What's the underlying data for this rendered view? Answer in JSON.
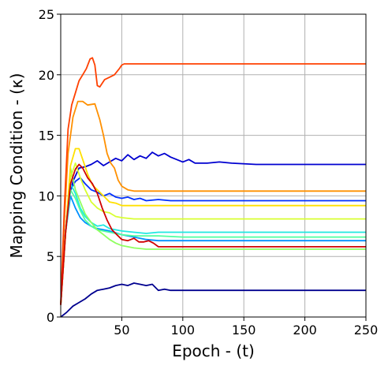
{
  "chart_data": {
    "type": "line",
    "xlabel": "Epoch - (t)",
    "ylabel": "Mapping Condition - (κ)",
    "xlim": [
      0,
      250
    ],
    "ylim": [
      0,
      25
    ],
    "x_ticks": [
      50,
      100,
      150,
      200,
      250
    ],
    "y_ticks": [
      0,
      5,
      10,
      15,
      20,
      25
    ],
    "x_tick_labels": [
      "50",
      "100",
      "150",
      "200",
      "250"
    ],
    "y_tick_labels": [
      "0",
      "5",
      "10",
      "15",
      "20",
      "25"
    ],
    "grid": true,
    "legend": "none",
    "series": [
      {
        "color": "#00008f",
        "points": [
          [
            0,
            0
          ],
          [
            5,
            0.4
          ],
          [
            10,
            0.9
          ],
          [
            15,
            1.2
          ],
          [
            20,
            1.5
          ],
          [
            25,
            1.9
          ],
          [
            30,
            2.2
          ],
          [
            35,
            2.3
          ],
          [
            40,
            2.4
          ],
          [
            45,
            2.6
          ],
          [
            50,
            2.7
          ],
          [
            55,
            2.6
          ],
          [
            60,
            2.8
          ],
          [
            65,
            2.7
          ],
          [
            70,
            2.6
          ],
          [
            75,
            2.7
          ],
          [
            80,
            2.2
          ],
          [
            85,
            2.3
          ],
          [
            90,
            2.2
          ],
          [
            250,
            2.2
          ]
        ]
      },
      {
        "color": "#0000d0",
        "points": [
          [
            0,
            1
          ],
          [
            3,
            6
          ],
          [
            6,
            9.5
          ],
          [
            10,
            11.2
          ],
          [
            15,
            12.3
          ],
          [
            20,
            12.4
          ],
          [
            25,
            12.6
          ],
          [
            30,
            12.9
          ],
          [
            35,
            12.5
          ],
          [
            40,
            12.8
          ],
          [
            45,
            13.1
          ],
          [
            50,
            12.9
          ],
          [
            55,
            13.4
          ],
          [
            60,
            13.0
          ],
          [
            65,
            13.3
          ],
          [
            70,
            13.1
          ],
          [
            75,
            13.6
          ],
          [
            80,
            13.3
          ],
          [
            85,
            13.5
          ],
          [
            90,
            13.2
          ],
          [
            95,
            13.0
          ],
          [
            100,
            12.8
          ],
          [
            105,
            13.0
          ],
          [
            110,
            12.7
          ],
          [
            120,
            12.7
          ],
          [
            130,
            12.8
          ],
          [
            140,
            12.7
          ],
          [
            160,
            12.6
          ],
          [
            250,
            12.6
          ]
        ]
      },
      {
        "color": "#0030ff",
        "points": [
          [
            0,
            1
          ],
          [
            4,
            7
          ],
          [
            8,
            10.5
          ],
          [
            12,
            11.2
          ],
          [
            16,
            11.5
          ],
          [
            20,
            11.0
          ],
          [
            25,
            10.5
          ],
          [
            30,
            10.3
          ],
          [
            35,
            10.0
          ],
          [
            40,
            10.2
          ],
          [
            45,
            9.9
          ],
          [
            50,
            9.8
          ],
          [
            55,
            9.9
          ],
          [
            60,
            9.7
          ],
          [
            65,
            9.8
          ],
          [
            70,
            9.6
          ],
          [
            80,
            9.7
          ],
          [
            90,
            9.6
          ],
          [
            100,
            9.6
          ],
          [
            250,
            9.6
          ]
        ]
      },
      {
        "color": "#0090ff",
        "points": [
          [
            0,
            1
          ],
          [
            4,
            7
          ],
          [
            8,
            10.0
          ],
          [
            12,
            9.0
          ],
          [
            16,
            8.2
          ],
          [
            20,
            7.8
          ],
          [
            25,
            7.5
          ],
          [
            30,
            7.3
          ],
          [
            40,
            7.1
          ],
          [
            50,
            6.8
          ],
          [
            60,
            6.6
          ],
          [
            70,
            6.4
          ],
          [
            80,
            6.3
          ],
          [
            100,
            6.3
          ],
          [
            250,
            6.3
          ]
        ]
      },
      {
        "color": "#20e8e0",
        "points": [
          [
            0,
            1
          ],
          [
            4,
            7
          ],
          [
            8,
            11.0
          ],
          [
            12,
            10.2
          ],
          [
            16,
            9.0
          ],
          [
            20,
            8.3
          ],
          [
            25,
            7.8
          ],
          [
            30,
            7.5
          ],
          [
            35,
            7.6
          ],
          [
            40,
            7.3
          ],
          [
            50,
            7.1
          ],
          [
            60,
            7.0
          ],
          [
            70,
            6.9
          ],
          [
            80,
            7.0
          ],
          [
            250,
            7.0
          ]
        ]
      },
      {
        "color": "#50ffa0",
        "points": [
          [
            0,
            1
          ],
          [
            4,
            7
          ],
          [
            8,
            10.5
          ],
          [
            12,
            9.8
          ],
          [
            16,
            8.8
          ],
          [
            20,
            8.0
          ],
          [
            25,
            7.5
          ],
          [
            30,
            7.2
          ],
          [
            40,
            7.0
          ],
          [
            50,
            6.8
          ],
          [
            60,
            6.7
          ],
          [
            80,
            6.7
          ],
          [
            100,
            6.6
          ],
          [
            250,
            6.6
          ]
        ]
      },
      {
        "color": "#90ff60",
        "points": [
          [
            0,
            1
          ],
          [
            4,
            7
          ],
          [
            8,
            12.3
          ],
          [
            12,
            10.5
          ],
          [
            16,
            9.5
          ],
          [
            20,
            8.5
          ],
          [
            25,
            7.8
          ],
          [
            30,
            7.2
          ],
          [
            35,
            6.8
          ],
          [
            40,
            6.4
          ],
          [
            45,
            6.1
          ],
          [
            50,
            5.9
          ],
          [
            55,
            5.8
          ],
          [
            60,
            5.7
          ],
          [
            70,
            5.6
          ],
          [
            80,
            5.6
          ],
          [
            100,
            5.6
          ],
          [
            250,
            5.6
          ]
        ]
      },
      {
        "color": "#d8ff30",
        "points": [
          [
            0,
            1
          ],
          [
            4,
            7
          ],
          [
            8,
            11.5
          ],
          [
            12,
            12.7
          ],
          [
            16,
            11.5
          ],
          [
            20,
            10.5
          ],
          [
            25,
            9.5
          ],
          [
            30,
            9.0
          ],
          [
            35,
            8.7
          ],
          [
            40,
            8.6
          ],
          [
            45,
            8.3
          ],
          [
            50,
            8.2
          ],
          [
            60,
            8.1
          ],
          [
            70,
            8.1
          ],
          [
            80,
            8.1
          ],
          [
            250,
            8.1
          ]
        ]
      },
      {
        "color": "#ffe000",
        "points": [
          [
            0,
            1
          ],
          [
            4,
            7
          ],
          [
            8,
            12.5
          ],
          [
            12,
            13.9
          ],
          [
            15,
            13.9
          ],
          [
            18,
            13.0
          ],
          [
            22,
            11.8
          ],
          [
            26,
            10.9
          ],
          [
            30,
            10.5
          ],
          [
            35,
            10.0
          ],
          [
            40,
            9.5
          ],
          [
            45,
            9.4
          ],
          [
            50,
            9.2
          ],
          [
            60,
            9.2
          ],
          [
            80,
            9.2
          ],
          [
            250,
            9.2
          ]
        ]
      },
      {
        "color": "#ff9000",
        "points": [
          [
            0,
            1
          ],
          [
            3,
            8
          ],
          [
            6,
            13.5
          ],
          [
            10,
            16.5
          ],
          [
            14,
            17.8
          ],
          [
            18,
            17.8
          ],
          [
            22,
            17.5
          ],
          [
            28,
            17.6
          ],
          [
            32,
            16.3
          ],
          [
            35,
            15.0
          ],
          [
            38,
            13.5
          ],
          [
            41,
            12.7
          ],
          [
            44,
            12.3
          ],
          [
            47,
            11.3
          ],
          [
            50,
            10.8
          ],
          [
            55,
            10.5
          ],
          [
            60,
            10.4
          ],
          [
            70,
            10.4
          ],
          [
            80,
            10.4
          ],
          [
            250,
            10.4
          ]
        ]
      },
      {
        "color": "#ff4000",
        "points": [
          [
            0,
            1
          ],
          [
            3,
            9
          ],
          [
            6,
            15.5
          ],
          [
            9,
            17.5
          ],
          [
            12,
            18.5
          ],
          [
            15,
            19.5
          ],
          [
            18,
            20.0
          ],
          [
            21,
            20.5
          ],
          [
            24,
            21.3
          ],
          [
            26,
            21.4
          ],
          [
            28,
            20.8
          ],
          [
            30,
            19.1
          ],
          [
            32,
            19.0
          ],
          [
            36,
            19.6
          ],
          [
            40,
            19.8
          ],
          [
            44,
            20.0
          ],
          [
            48,
            20.5
          ],
          [
            50,
            20.8
          ],
          [
            52,
            20.9
          ],
          [
            60,
            20.9
          ],
          [
            250,
            20.9
          ]
        ]
      },
      {
        "color": "#d00000",
        "points": [
          [
            0,
            1
          ],
          [
            4,
            7
          ],
          [
            8,
            11.0
          ],
          [
            12,
            12.2
          ],
          [
            15,
            12.6
          ],
          [
            18,
            12.3
          ],
          [
            22,
            11.5
          ],
          [
            26,
            11.0
          ],
          [
            30,
            10.2
          ],
          [
            34,
            9.0
          ],
          [
            38,
            8.0
          ],
          [
            42,
            7.2
          ],
          [
            46,
            6.8
          ],
          [
            50,
            6.4
          ],
          [
            55,
            6.3
          ],
          [
            60,
            6.5
          ],
          [
            64,
            6.2
          ],
          [
            68,
            6.2
          ],
          [
            72,
            6.3
          ],
          [
            76,
            6.1
          ],
          [
            80,
            5.8
          ],
          [
            85,
            5.8
          ],
          [
            100,
            5.8
          ],
          [
            250,
            5.8
          ]
        ]
      }
    ]
  }
}
